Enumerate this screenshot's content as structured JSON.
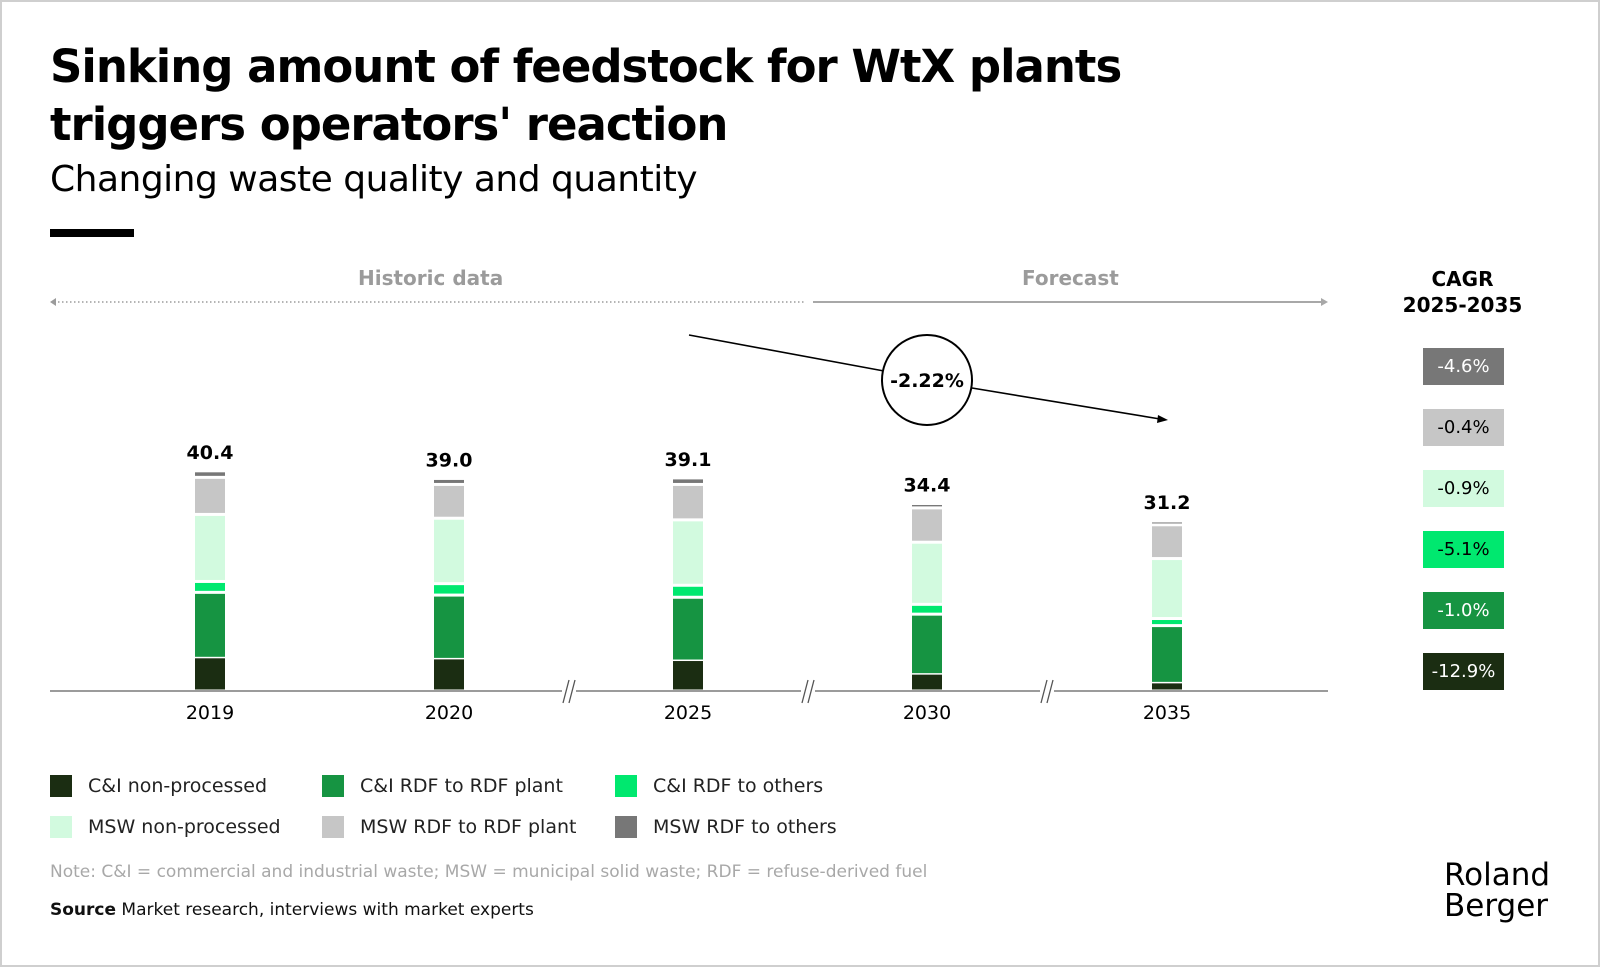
{
  "header": {
    "title_line1": "Sinking amount of feedstock for WtX plants",
    "title_line2": "triggers operators' reaction",
    "subtitle": "Changing waste quality and quantity"
  },
  "phases": {
    "historic": "Historic data",
    "forecast": "Forecast"
  },
  "trend": {
    "label": "-2.22%"
  },
  "cagr": {
    "title_line1": "CAGR",
    "title_line2": "2025-2035",
    "items": [
      {
        "series": "MSW RDF to others",
        "value": "-4.6%",
        "bg": "#777777",
        "fg": "#ffffff"
      },
      {
        "series": "MSW RDF to RDF plant",
        "value": "-0.4%",
        "bg": "#c6c6c6",
        "fg": "#000000"
      },
      {
        "series": "MSW non-processed",
        "value": "-0.9%",
        "bg": "#d2fadf",
        "fg": "#000000"
      },
      {
        "series": "C&I RDF to others",
        "value": "-5.1%",
        "bg": "#00e86f",
        "fg": "#000000"
      },
      {
        "series": "C&I RDF to RDF plant",
        "value": "-1.0%",
        "bg": "#169442",
        "fg": "#ffffff"
      },
      {
        "series": "C&I non-processed",
        "value": "-12.9%",
        "bg": "#1b2d12",
        "fg": "#ffffff"
      }
    ]
  },
  "chart_data": {
    "type": "bar",
    "stacked": true,
    "title": "Sinking amount of feedstock for WtX plants triggers operators' reaction",
    "subtitle": "Changing waste quality and quantity",
    "categories": [
      "2019",
      "2020",
      "2025",
      "2030",
      "2035"
    ],
    "axis_breaks_after": [
      "2020",
      "2025",
      "2030"
    ],
    "totals": [
      40.4,
      39.0,
      39.1,
      34.4,
      31.2
    ],
    "total_labels": [
      "40.4",
      "39.0",
      "39.1",
      "34.4",
      "31.2"
    ],
    "series": [
      {
        "name": "C&I non-processed",
        "color": "#1b2d12",
        "values": [
          6.0,
          5.8,
          5.5,
          3.0,
          1.4
        ]
      },
      {
        "name": "C&I RDF to RDF plant",
        "color": "#169442",
        "values": [
          12.1,
          11.8,
          11.7,
          11.1,
          10.6
        ]
      },
      {
        "name": "C&I RDF to others",
        "color": "#00e86f",
        "values": [
          2.0,
          2.1,
          2.2,
          1.8,
          1.3
        ]
      },
      {
        "name": "MSW non-processed",
        "color": "#d2fadf",
        "values": [
          12.3,
          12.0,
          12.0,
          11.4,
          11.0
        ]
      },
      {
        "name": "MSW RDF to RDF plant",
        "color": "#c6c6c6",
        "values": [
          6.8,
          6.2,
          6.5,
          6.3,
          6.2
        ]
      },
      {
        "name": "MSW RDF to others",
        "color": "#777777",
        "values": [
          1.2,
          1.1,
          1.2,
          0.8,
          0.7
        ]
      }
    ],
    "ylim": [
      0,
      45
    ],
    "xlabel": "",
    "ylabel": "",
    "grid": false,
    "legend_position": "bottom-left",
    "annotation": {
      "text": "-2.22%",
      "from": "2025",
      "to": "2035"
    }
  },
  "legend": {
    "items": [
      {
        "label": "C&I non-processed",
        "color": "#1b2d12"
      },
      {
        "label": "C&I RDF to RDF plant",
        "color": "#169442"
      },
      {
        "label": "C&I RDF to others",
        "color": "#00e86f"
      },
      {
        "label": "MSW non-processed",
        "color": "#d2fadf"
      },
      {
        "label": "MSW RDF to RDF plant",
        "color": "#c6c6c6"
      },
      {
        "label": "MSW RDF to others",
        "color": "#777777"
      }
    ]
  },
  "footer": {
    "note": "Note: C&I = commercial and industrial waste; MSW = municipal solid waste; RDF = refuse-derived fuel",
    "source_label": "Source",
    "source_text": " Market research, interviews with market experts",
    "logo_line1": "Roland",
    "logo_line2": "Berger"
  }
}
